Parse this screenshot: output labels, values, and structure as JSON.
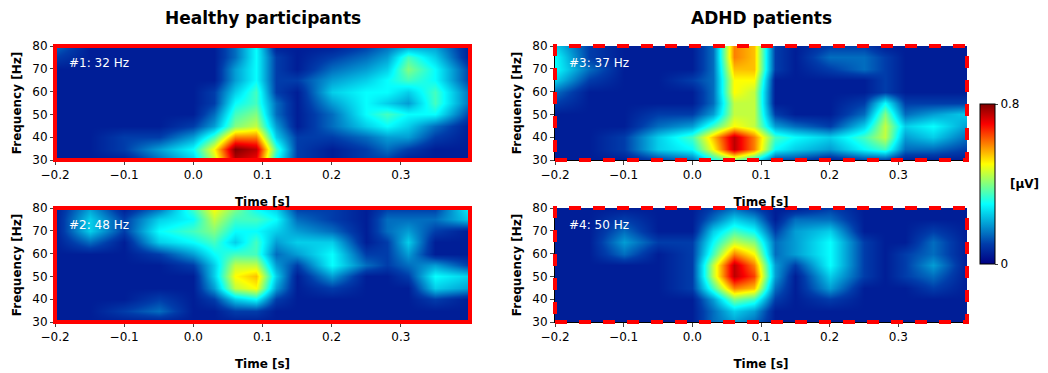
{
  "chart_data": {
    "type": "heatmap",
    "color": "Jet",
    "xlabel": "Time [s]",
    "ylabel": "Frequency [Hz]",
    "x": [
      -0.2,
      -0.15,
      -0.1,
      -0.05,
      0,
      0.03,
      0.06,
      0.09,
      0.12,
      0.15,
      0.2,
      0.25,
      0.28,
      0.31,
      0.35,
      0.4
    ],
    "y": [
      30,
      35,
      40,
      45,
      50,
      55,
      60,
      65,
      70,
      75,
      80
    ],
    "xlim": [
      -0.2,
      0.4
    ],
    "ylim": [
      30,
      80
    ],
    "xticks": [
      {
        "value": -0.2,
        "label": "−0.2"
      },
      {
        "value": -0.1,
        "label": "−0.1"
      },
      {
        "value": 0,
        "label": "0.0"
      },
      0.1,
      0.2,
      0.3
    ],
    "yticks": [
      30,
      40,
      50,
      60,
      70,
      80
    ],
    "colorbar": {
      "title": "[μV]",
      "range": [
        0,
        0.8
      ],
      "ticks": [
        0,
        0.8
      ]
    },
    "groups": [
      {
        "title": "Healthy participants",
        "color": "#ff0000",
        "line_style": "solid",
        "panels": [
          {
            "label": "#1: 32 Hz",
            "cells": [
              [
                0.05,
                0.05,
                0.05,
                0.15,
                0.25,
                0.45,
                0.75,
                0.7,
                0.3,
                0.1,
                0.05,
                0.1,
                0.1,
                0.05,
                0.05,
                0.05
              ],
              [
                0.05,
                0.05,
                0.1,
                0.2,
                0.3,
                0.5,
                0.8,
                0.75,
                0.35,
                0.1,
                0.05,
                0.1,
                0.15,
                0.1,
                0.05,
                0.05
              ],
              [
                0.05,
                0.05,
                0.1,
                0.1,
                0.2,
                0.35,
                0.6,
                0.6,
                0.25,
                0.1,
                0.1,
                0.15,
                0.2,
                0.2,
                0.1,
                0.05
              ],
              [
                0.05,
                0.05,
                0.05,
                0.05,
                0.1,
                0.2,
                0.4,
                0.45,
                0.2,
                0.05,
                0.15,
                0.25,
                0.3,
                0.25,
                0.15,
                0.05
              ],
              [
                0.05,
                0.05,
                0.05,
                0.05,
                0.05,
                0.15,
                0.35,
                0.4,
                0.15,
                0.05,
                0.15,
                0.3,
                0.35,
                0.3,
                0.3,
                0.1
              ],
              [
                0.05,
                0.05,
                0.05,
                0.05,
                0.05,
                0.1,
                0.3,
                0.35,
                0.15,
                0.05,
                0.2,
                0.3,
                0.25,
                0.2,
                0.35,
                0.15
              ],
              [
                0.05,
                0.05,
                0.05,
                0.05,
                0.05,
                0.1,
                0.25,
                0.35,
                0.1,
                0.05,
                0.25,
                0.3,
                0.3,
                0.25,
                0.35,
                0.15
              ],
              [
                0.05,
                0.05,
                0.05,
                0.05,
                0.05,
                0.05,
                0.2,
                0.3,
                0.1,
                0.1,
                0.2,
                0.25,
                0.3,
                0.35,
                0.3,
                0.1
              ],
              [
                0.05,
                0.05,
                0.05,
                0.05,
                0.05,
                0.05,
                0.2,
                0.3,
                0.1,
                0.05,
                0.15,
                0.2,
                0.25,
                0.4,
                0.3,
                0.1
              ],
              [
                0.1,
                0.05,
                0.05,
                0.05,
                0.05,
                0.05,
                0.15,
                0.3,
                0.1,
                0.05,
                0.1,
                0.15,
                0.2,
                0.35,
                0.25,
                0.05
              ],
              [
                0.15,
                0.05,
                0.05,
                0.05,
                0.05,
                0.05,
                0.15,
                0.3,
                0.05,
                0.05,
                0.05,
                0.1,
                0.15,
                0.2,
                0.2,
                0.05
              ]
            ]
          },
          {
            "label": "#2: 48 Hz",
            "cells": [
              [
                0.05,
                0.05,
                0.05,
                0.05,
                0.05,
                0.05,
                0.05,
                0.05,
                0.05,
                0.05,
                0.05,
                0.05,
                0.05,
                0.05,
                0.05,
                0.05
              ],
              [
                0.05,
                0.05,
                0.1,
                0.15,
                0.05,
                0.05,
                0.1,
                0.1,
                0.05,
                0.05,
                0.05,
                0.05,
                0.05,
                0.05,
                0.05,
                0.05
              ],
              [
                0.05,
                0.05,
                0.05,
                0.1,
                0.05,
                0.1,
                0.25,
                0.3,
                0.1,
                0.05,
                0.05,
                0.05,
                0.05,
                0.05,
                0.1,
                0.05
              ],
              [
                0.05,
                0.05,
                0.05,
                0.05,
                0.05,
                0.2,
                0.45,
                0.5,
                0.2,
                0.05,
                0.1,
                0.05,
                0.05,
                0.05,
                0.25,
                0.2
              ],
              [
                0.05,
                0.05,
                0.05,
                0.05,
                0.05,
                0.25,
                0.5,
                0.55,
                0.25,
                0.05,
                0.2,
                0.05,
                0.05,
                0.1,
                0.3,
                0.25
              ],
              [
                0.05,
                0.05,
                0.05,
                0.05,
                0.1,
                0.25,
                0.45,
                0.45,
                0.2,
                0.1,
                0.3,
                0.15,
                0.1,
                0.15,
                0.2,
                0.1
              ],
              [
                0.05,
                0.05,
                0.05,
                0.1,
                0.2,
                0.3,
                0.35,
                0.35,
                0.15,
                0.2,
                0.3,
                0.1,
                0.1,
                0.2,
                0.05,
                0.05
              ],
              [
                0.05,
                0.15,
                0.05,
                0.25,
                0.3,
                0.35,
                0.25,
                0.35,
                0.2,
                0.25,
                0.25,
                0.05,
                0.1,
                0.25,
                0.05,
                0.05
              ],
              [
                0.05,
                0.25,
                0.1,
                0.3,
                0.35,
                0.4,
                0.3,
                0.3,
                0.25,
                0.2,
                0.15,
                0.05,
                0.15,
                0.2,
                0.1,
                0.05
              ],
              [
                0.05,
                0.25,
                0.1,
                0.25,
                0.3,
                0.45,
                0.35,
                0.35,
                0.3,
                0.15,
                0.1,
                0.05,
                0.15,
                0.15,
                0.15,
                0.25
              ],
              [
                0.05,
                0.2,
                0.05,
                0.15,
                0.35,
                0.5,
                0.4,
                0.3,
                0.25,
                0.1,
                0.1,
                0.05,
                0.1,
                0.1,
                0.1,
                0.3
              ]
            ]
          }
        ]
      },
      {
        "title": "ADHD patients",
        "color": "#ff0000",
        "line_style": "dashed",
        "panels": [
          {
            "label": "#3: 37 Hz",
            "cells": [
              [
                0.05,
                0.05,
                0.05,
                0.1,
                0.15,
                0.3,
                0.4,
                0.3,
                0.1,
                0.1,
                0.05,
                0.1,
                0.1,
                0.05,
                0.05,
                0.05
              ],
              [
                0.05,
                0.05,
                0.1,
                0.25,
                0.3,
                0.5,
                0.75,
                0.6,
                0.3,
                0.25,
                0.2,
                0.3,
                0.35,
                0.15,
                0.15,
                0.1
              ],
              [
                0.05,
                0.05,
                0.1,
                0.25,
                0.35,
                0.55,
                0.75,
                0.6,
                0.35,
                0.3,
                0.25,
                0.35,
                0.45,
                0.2,
                0.25,
                0.15
              ],
              [
                0.05,
                0.05,
                0.05,
                0.15,
                0.2,
                0.35,
                0.5,
                0.45,
                0.2,
                0.15,
                0.1,
                0.25,
                0.45,
                0.25,
                0.3,
                0.2
              ],
              [
                0.05,
                0.05,
                0.05,
                0.1,
                0.1,
                0.2,
                0.45,
                0.45,
                0.1,
                0.05,
                0.05,
                0.15,
                0.4,
                0.15,
                0.2,
                0.25
              ],
              [
                0.1,
                0.05,
                0.05,
                0.05,
                0.05,
                0.15,
                0.45,
                0.45,
                0.05,
                0.05,
                0.05,
                0.1,
                0.3,
                0.1,
                0.1,
                0.1
              ],
              [
                0.15,
                0.05,
                0.05,
                0.05,
                0.05,
                0.15,
                0.5,
                0.45,
                0.05,
                0.05,
                0.05,
                0.05,
                0.1,
                0.05,
                0.05,
                0.05
              ],
              [
                0.25,
                0.1,
                0.05,
                0.05,
                0.1,
                0.15,
                0.5,
                0.5,
                0.05,
                0.05,
                0.05,
                0.05,
                0.1,
                0.05,
                0.05,
                0.05
              ],
              [
                0.3,
                0.15,
                0.05,
                0.05,
                0.05,
                0.15,
                0.55,
                0.55,
                0.1,
                0.05,
                0.1,
                0.15,
                0.1,
                0.05,
                0.05,
                0.05
              ],
              [
                0.3,
                0.1,
                0.05,
                0.05,
                0.05,
                0.15,
                0.6,
                0.55,
                0.1,
                0.05,
                0.15,
                0.15,
                0.1,
                0.05,
                0.05,
                0.05
              ],
              [
                0.25,
                0.1,
                0.05,
                0.05,
                0.05,
                0.15,
                0.6,
                0.55,
                0.1,
                0.05,
                0.1,
                0.1,
                0.05,
                0.05,
                0.05,
                0.05
              ]
            ]
          },
          {
            "label": "#4: 50 Hz",
            "cells": [
              [
                0.05,
                0.05,
                0.05,
                0.05,
                0.05,
                0.15,
                0.2,
                0.15,
                0.05,
                0.05,
                0.05,
                0.05,
                0.05,
                0.05,
                0.05,
                0.05
              ],
              [
                0.05,
                0.05,
                0.05,
                0.05,
                0.05,
                0.15,
                0.25,
                0.2,
                0.05,
                0.05,
                0.05,
                0.05,
                0.05,
                0.05,
                0.05,
                0.05
              ],
              [
                0.05,
                0.05,
                0.05,
                0.05,
                0.05,
                0.2,
                0.4,
                0.35,
                0.1,
                0.05,
                0.1,
                0.05,
                0.05,
                0.05,
                0.05,
                0.05
              ],
              [
                0.05,
                0.05,
                0.05,
                0.05,
                0.1,
                0.35,
                0.6,
                0.55,
                0.15,
                0.05,
                0.2,
                0.05,
                0.05,
                0.05,
                0.1,
                0.05
              ],
              [
                0.05,
                0.05,
                0.05,
                0.05,
                0.1,
                0.45,
                0.75,
                0.65,
                0.2,
                0.05,
                0.25,
                0.1,
                0.05,
                0.1,
                0.15,
                0.05
              ],
              [
                0.05,
                0.05,
                0.05,
                0.05,
                0.1,
                0.45,
                0.75,
                0.6,
                0.2,
                0.1,
                0.3,
                0.1,
                0.05,
                0.1,
                0.2,
                0.05
              ],
              [
                0.05,
                0.05,
                0.15,
                0.05,
                0.1,
                0.35,
                0.6,
                0.5,
                0.15,
                0.2,
                0.3,
                0.1,
                0.05,
                0.1,
                0.15,
                0.05
              ],
              [
                0.05,
                0.05,
                0.2,
                0.1,
                0.1,
                0.3,
                0.45,
                0.4,
                0.15,
                0.2,
                0.3,
                0.1,
                0.05,
                0.05,
                0.15,
                0.05
              ],
              [
                0.05,
                0.05,
                0.15,
                0.05,
                0.05,
                0.25,
                0.35,
                0.3,
                0.1,
                0.2,
                0.25,
                0.05,
                0.05,
                0.05,
                0.1,
                0.05
              ],
              [
                0.05,
                0.05,
                0.1,
                0.05,
                0.05,
                0.15,
                0.25,
                0.2,
                0.05,
                0.15,
                0.15,
                0.05,
                0.05,
                0.05,
                0.05,
                0.05
              ],
              [
                0.05,
                0.05,
                0.05,
                0.05,
                0.05,
                0.1,
                0.15,
                0.1,
                0.05,
                0.05,
                0.1,
                0.05,
                0.05,
                0.05,
                0.05,
                0.05
              ]
            ]
          }
        ]
      }
    ]
  }
}
